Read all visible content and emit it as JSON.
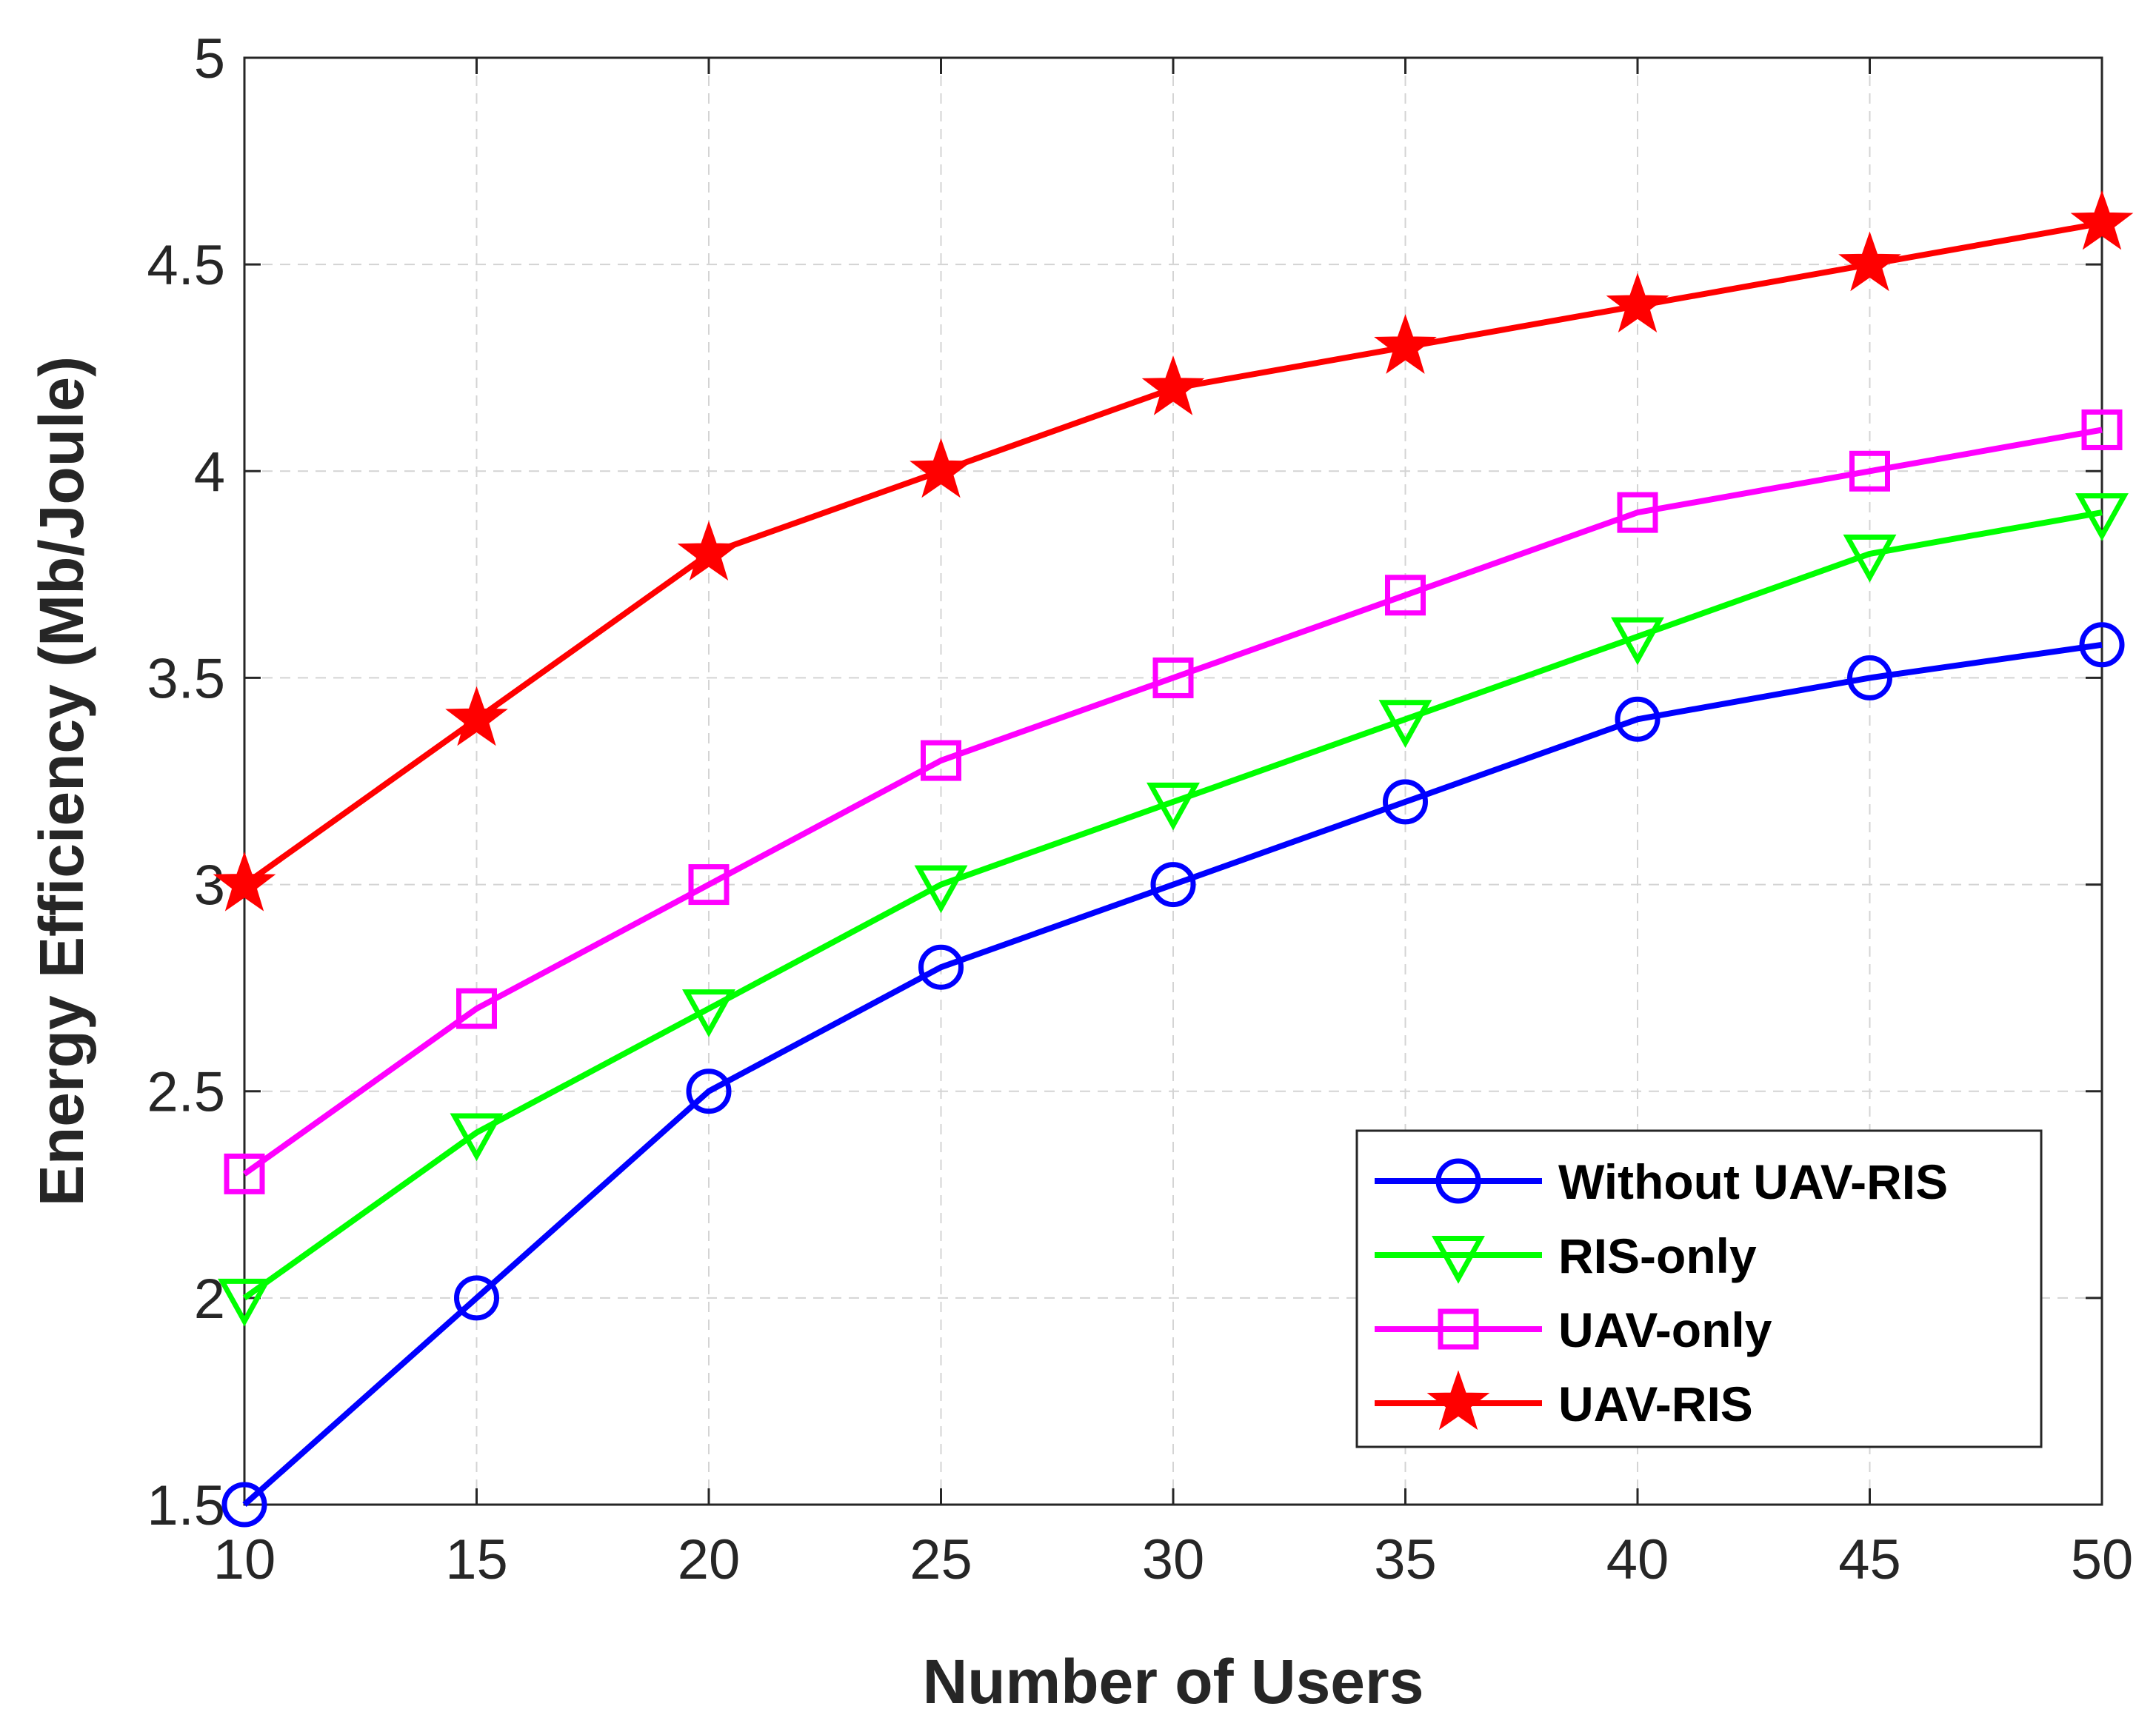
{
  "chart_data": {
    "type": "line",
    "title": "",
    "xlabel": "Number of Users",
    "ylabel": "Energy Efficiency (Mb/Joule)",
    "x": [
      10,
      15,
      20,
      25,
      30,
      35,
      40,
      45,
      50
    ],
    "xlim": [
      10,
      50
    ],
    "ylim": [
      1.5,
      5
    ],
    "xticks": [
      10,
      15,
      20,
      25,
      30,
      35,
      40,
      45,
      50
    ],
    "yticks": [
      1.5,
      2,
      2.5,
      3,
      3.5,
      4,
      4.5,
      5
    ],
    "xtick_labels": [
      "10",
      "15",
      "20",
      "25",
      "30",
      "35",
      "40",
      "45",
      "50"
    ],
    "ytick_labels": [
      "1.5",
      "2",
      "2.5",
      "3",
      "3.5",
      "4",
      "4.5",
      "5"
    ],
    "grid": true,
    "legend_position": "bottom-right",
    "series": [
      {
        "name": "Without UAV-RIS",
        "color": "#0000ff",
        "marker": "circle",
        "values": [
          1.5,
          2.0,
          2.5,
          2.8,
          3.0,
          3.2,
          3.4,
          3.5,
          3.58
        ]
      },
      {
        "name": "RIS-only",
        "color": "#00ff00",
        "marker": "triangle-down",
        "values": [
          2.0,
          2.4,
          2.7,
          3.0,
          3.2,
          3.4,
          3.6,
          3.8,
          3.9
        ]
      },
      {
        "name": "UAV-only",
        "color": "#ff00ff",
        "marker": "square",
        "values": [
          2.3,
          2.7,
          3.0,
          3.3,
          3.5,
          3.7,
          3.9,
          4.0,
          4.1
        ]
      },
      {
        "name": "UAV-RIS",
        "color": "#ff0000",
        "marker": "star",
        "values": [
          3.0,
          3.4,
          3.8,
          4.0,
          4.2,
          4.3,
          4.4,
          4.5,
          4.6
        ]
      }
    ]
  }
}
